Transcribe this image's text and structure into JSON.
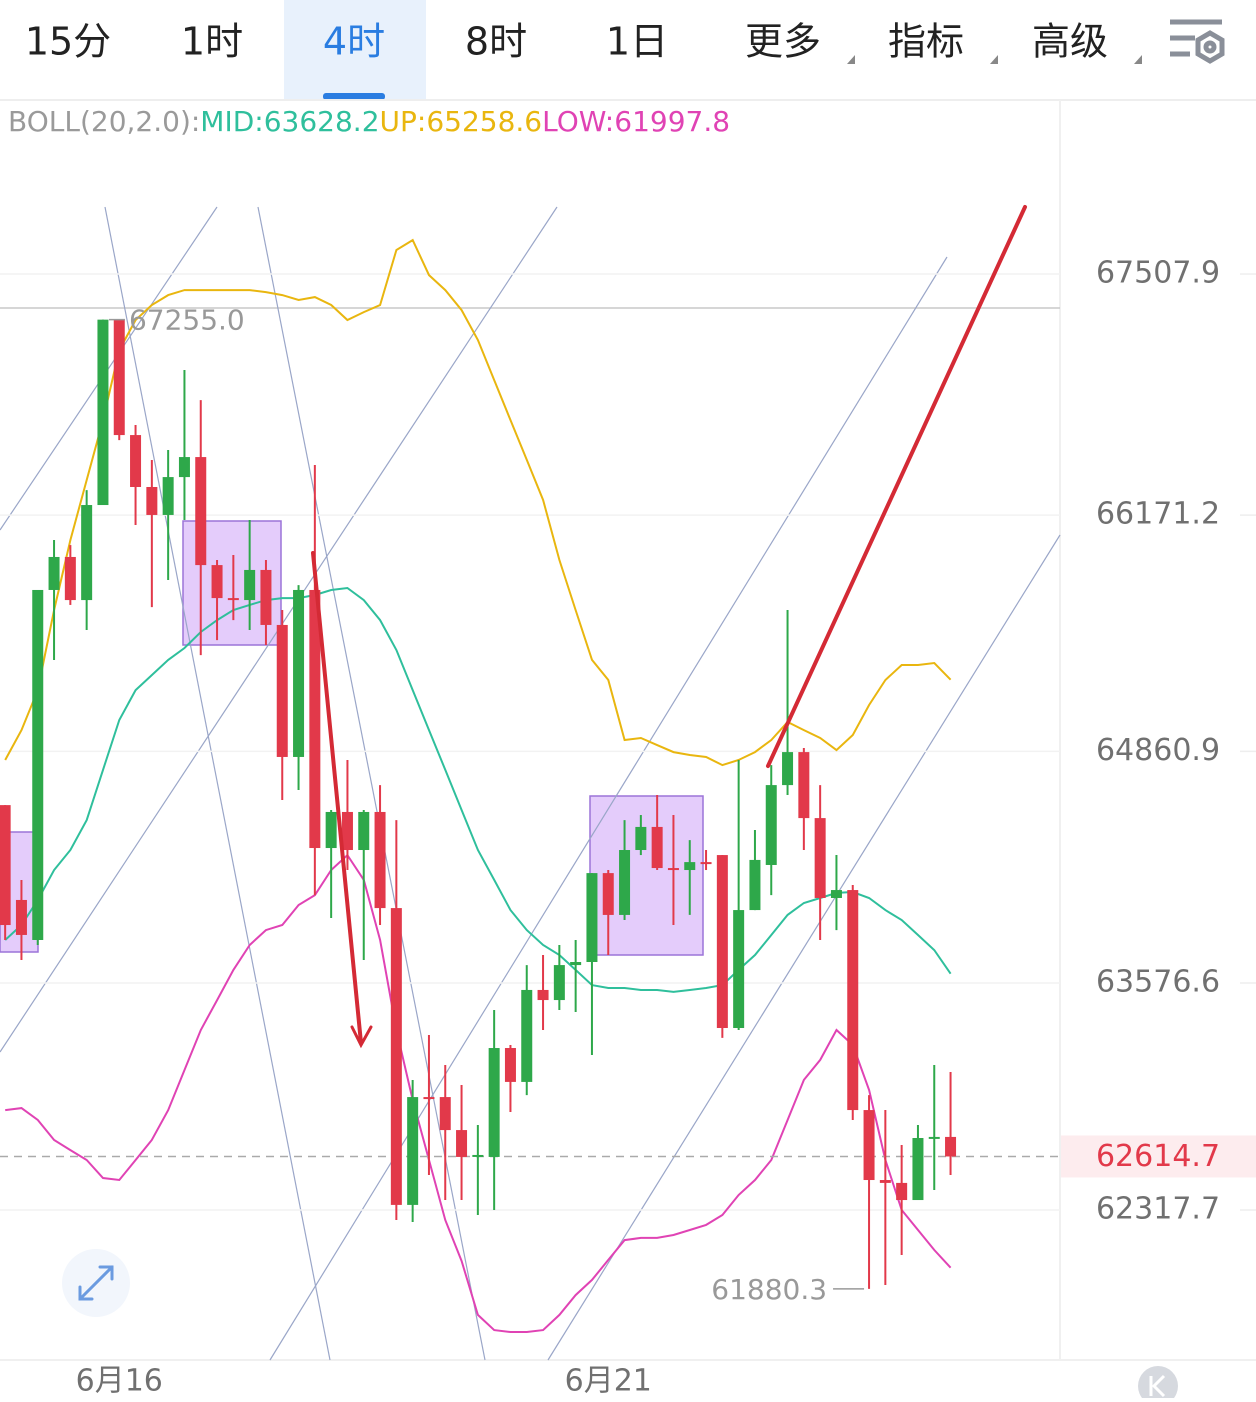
{
  "header": {
    "tabs": [
      {
        "label": "15分",
        "active": false
      },
      {
        "label": "1时",
        "active": false
      },
      {
        "label": "4时",
        "active": true
      },
      {
        "label": "8时",
        "active": false
      },
      {
        "label": "1日",
        "active": false
      },
      {
        "label": "更多",
        "active": false,
        "menu": true
      },
      {
        "label": "指标",
        "active": false,
        "menu": true
      },
      {
        "label": "高级",
        "active": false,
        "menu": true
      }
    ]
  },
  "chart_data": {
    "type": "candlestick",
    "indicator": "BOLL(20,2.0):",
    "categories": [
      null,
      null,
      null,
      null,
      null,
      null,
      null,
      "6月16",
      null,
      null,
      null,
      null,
      null,
      null,
      null,
      null,
      null,
      null,
      null,
      null,
      null,
      null,
      null,
      null,
      null,
      null,
      null,
      null,
      null,
      null,
      null,
      null,
      null,
      null,
      null,
      null,
      null,
      "6月21",
      null,
      null,
      null,
      null,
      null,
      null,
      null,
      null,
      null,
      null,
      null,
      null,
      null,
      null,
      null,
      null,
      null,
      null,
      null,
      null,
      null
    ],
    "open": [
      64563,
      64037,
      63815,
      65756,
      65939,
      65700,
      66227,
      67255,
      66615,
      66327,
      66172,
      66382,
      66493,
      65894,
      65711,
      65700,
      65867,
      65562,
      64830,
      65756,
      64325,
      64525,
      64314,
      64525,
      63992,
      62346,
      62944,
      62944,
      62761,
      62612,
      62612,
      63216,
      63028,
      63538,
      63482,
      63676,
      63693,
      64186,
      63954,
      64314,
      64442,
      64214,
      64203,
      64247,
      64286,
      63327,
      63981,
      64231,
      64674,
      64857,
      64491,
      64048,
      64092,
      62872,
      62484,
      62468,
      62373,
      62717,
      62723
    ],
    "high": [
      64563,
      64148,
      65756,
      66033,
      66005,
      66310,
      67255,
      67255,
      66671,
      66477,
      66532,
      66976,
      66809,
      65922,
      65950,
      66144,
      65922,
      65645,
      65783,
      66449,
      64536,
      64813,
      64536,
      64674,
      64480,
      63039,
      63288,
      63122,
      63011,
      62789,
      63427,
      63233,
      63676,
      63732,
      63787,
      63815,
      64186,
      64203,
      64480,
      64508,
      64619,
      64508,
      64369,
      64314,
      64286,
      64813,
      64425,
      64785,
      65645,
      64880,
      64674,
      64286,
      64120,
      62955,
      62872,
      62678,
      62789,
      63122,
      63083
    ],
    "low": [
      63815,
      63704,
      63787,
      65368,
      65673,
      65534,
      66227,
      66587,
      66116,
      65661,
      65811,
      66144,
      65395,
      65478,
      65589,
      65534,
      65451,
      64591,
      64647,
      64064,
      63937,
      64203,
      63704,
      63898,
      62262,
      62251,
      62512,
      62373,
      62373,
      62290,
      62318,
      62861,
      62955,
      63316,
      63427,
      63416,
      63177,
      63732,
      63926,
      64286,
      64203,
      63898,
      63954,
      64203,
      63272,
      63316,
      63981,
      64064,
      64619,
      64314,
      63815,
      63870,
      62817,
      61880.3,
      61902,
      62068,
      62373,
      62429,
      62512
    ],
    "close": [
      63898,
      63843,
      65756,
      65939,
      65700,
      66227,
      67255,
      66615,
      66327,
      66172,
      66382,
      66493,
      65894,
      65711,
      65700,
      65867,
      65562,
      64830,
      65756,
      64325,
      64525,
      64314,
      64525,
      63992,
      62346,
      62944,
      62939,
      62761,
      62612,
      62623,
      63216,
      63028,
      63538,
      63482,
      63676,
      63693,
      64186,
      63954,
      64314,
      64442,
      64214,
      64203,
      64247,
      64236,
      63327,
      63981,
      64259,
      64674,
      64857,
      64491,
      64048,
      64092,
      62872,
      62484,
      62468,
      62373,
      62717,
      62723,
      62614.7
    ],
    "up_color": "#2ea84a",
    "down_color": "#e2394a",
    "series": [
      {
        "name": "MID:",
        "color": "#2fbf9c",
        "values": [
          63815,
          63898,
          64037,
          64203,
          64314,
          64480,
          64758,
          65035,
          65201,
          65284,
          65368,
          65434,
          65523,
          65589,
          65645,
          65673,
          65700,
          65711,
          65711,
          65728,
          65756,
          65767,
          65700,
          65589,
          65423,
          65201,
          64979,
          64758,
          64536,
          64314,
          64148,
          63981,
          63870,
          63787,
          63732,
          63649,
          63565,
          63549,
          63549,
          63538,
          63538,
          63527,
          63538,
          63549,
          63565,
          63649,
          63732,
          63843,
          63954,
          64020,
          64048,
          64076,
          64081,
          64048,
          63981,
          63926,
          63843,
          63759,
          63628.2
        ]
      },
      {
        "name": "UP:",
        "color": "#e9b60f",
        "values": [
          64813,
          64979,
          65201,
          65645,
          66033,
          66366,
          66698,
          67086,
          67253,
          67336,
          67391,
          67419,
          67419,
          67419,
          67419,
          67419,
          67408,
          67391,
          67364,
          67380,
          67336,
          67253,
          67297,
          67336,
          67641,
          67696,
          67502,
          67419,
          67308,
          67142,
          66920,
          66698,
          66477,
          66255,
          65922,
          65645,
          65368,
          65257,
          64924,
          64935,
          64896,
          64857,
          64841,
          64830,
          64785,
          64813,
          64857,
          64924,
          65024,
          64979,
          64935,
          64868,
          64952,
          65118,
          65257,
          65340,
          65340,
          65351,
          65258.6
        ]
      },
      {
        "name": "LOW:",
        "color": "#e043b4",
        "values": [
          62872,
          62883,
          62817,
          62706,
          62650,
          62595,
          62495,
          62484,
          62595,
          62706,
          62872,
          63094,
          63316,
          63482,
          63649,
          63787,
          63870,
          63898,
          64009,
          64064,
          64203,
          64286,
          64148,
          63815,
          63316,
          62928,
          62595,
          62262,
          62035,
          61736,
          61652,
          61641,
          61641,
          61652,
          61736,
          61846,
          61930,
          62041,
          62151,
          62163,
          62163,
          62179,
          62207,
          62235,
          62290,
          62401,
          62484,
          62595,
          62817,
          63039,
          63150,
          63316,
          63233,
          62983,
          62595,
          62318,
          62207,
          62096,
          61997.8
        ]
      }
    ],
    "ylim": [
      61486,
      68473
    ],
    "yticks": [
      67507.9,
      66171.2,
      64860.9,
      63576.6,
      62317.7
    ],
    "grid": true,
    "current_price": 62614.7,
    "high_marker": {
      "value": 67255,
      "label": "67255.0"
    },
    "low_marker": 61880.3
  }
}
